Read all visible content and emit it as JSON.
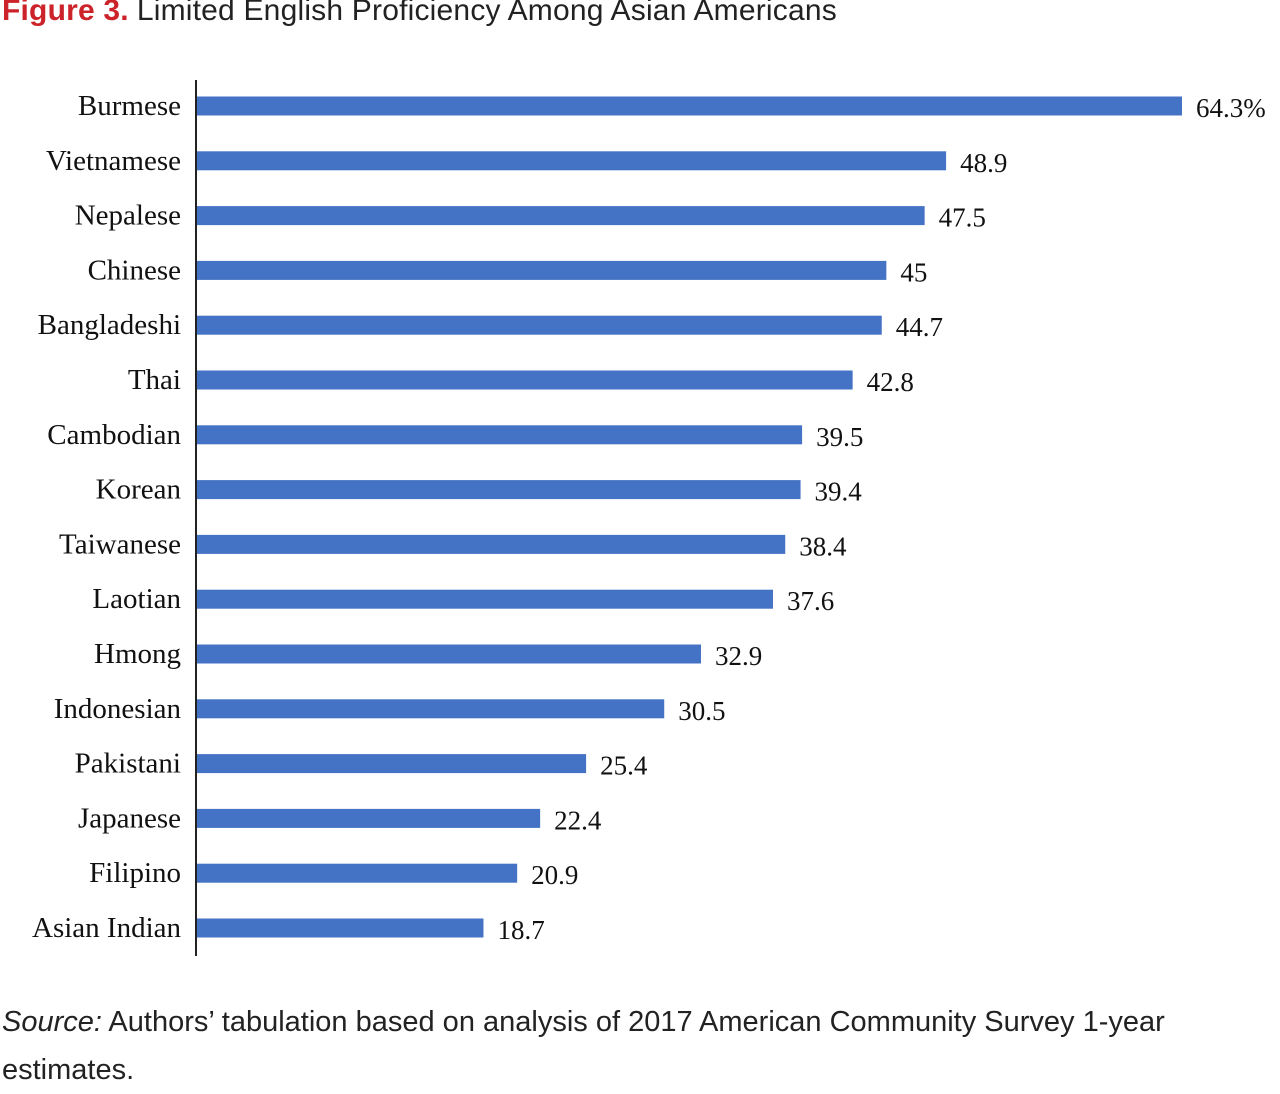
{
  "title": {
    "figure_label": "Figure 3.",
    "text": "Limited English Proficiency Among Asian Americans"
  },
  "source": {
    "lead": "Source:",
    "text": "Authors’ tabulation based on analysis of 2017 American Community Survey 1-year estimates."
  },
  "colors": {
    "bar": "#4472c4",
    "title_accent": "#cc2229",
    "axis": "#222222"
  },
  "chart_data": {
    "type": "bar",
    "orientation": "horizontal",
    "title": "Limited English Proficiency Among Asian Americans",
    "xlabel": "",
    "ylabel": "",
    "xlim": [
      0,
      64.3
    ],
    "grid": false,
    "categories": [
      "Burmese",
      "Vietnamese",
      "Nepalese",
      "Chinese",
      "Bangladeshi",
      "Thai",
      "Cambodian",
      "Korean",
      "Taiwanese",
      "Laotian",
      "Hmong",
      "Indonesian",
      "Pakistani",
      "Japanese",
      "Filipino",
      "Asian Indian"
    ],
    "values": [
      64.3,
      48.9,
      47.5,
      45,
      44.7,
      42.8,
      39.5,
      39.4,
      38.4,
      37.6,
      32.9,
      30.5,
      25.4,
      22.4,
      20.9,
      18.7
    ],
    "value_labels": [
      "64.3%",
      "48.9",
      "47.5",
      "45",
      "44.7",
      "42.8",
      "39.5",
      "39.4",
      "38.4",
      "37.6",
      "32.9",
      "30.5",
      "25.4",
      "22.4",
      "20.9",
      "18.7"
    ]
  }
}
